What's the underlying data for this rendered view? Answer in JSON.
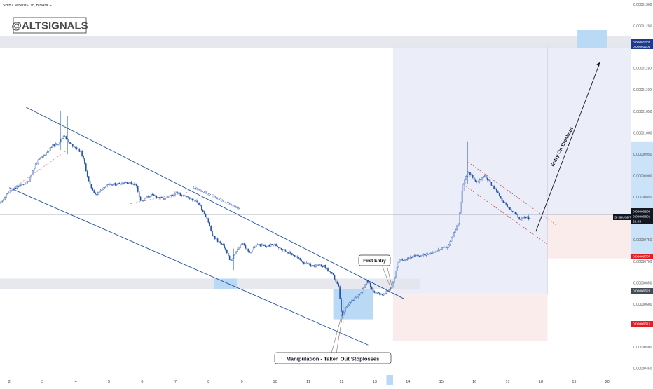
{
  "header": {
    "title": "SHIB / TetherUS, 1h, BINANCE"
  },
  "watermark": {
    "text": "@ALTSIGNALS"
  },
  "annotations": {
    "channel": "Descending Channel - Reversal",
    "first_entry": "First Entry",
    "breakout": "Entry On Breakout",
    "manipulation": "Manipulation - Taken Out Stoplosses"
  },
  "price_labels": {
    "target_top": "0.00001207",
    "target_bottom": "0.00001206",
    "symbol": "SHIBUSDT",
    "current_a": "0.00000809",
    "current_b": "0.00000801",
    "countdown": "28:03",
    "stop_upper": "0.00000707",
    "entry_lower": "0.00000623",
    "stop_lower": "0.00000515"
  },
  "colors": {
    "channel": "#1f4ea8",
    "candle": "#1f4ea8",
    "zone_blue": "#b9d9f5",
    "zone_grey": "#e2e4ea",
    "profit": "#e9ecf8",
    "loss": "#fbeaea",
    "stop": "#e31b23",
    "label_dark": "#131722"
  },
  "chart_data": {
    "type": "candlestick",
    "title": "SHIB / TetherUS, 1h, BINANCE",
    "xlabel": "",
    "ylabel": "",
    "grid": false,
    "x_ticks": [
      "2",
      "3",
      "4",
      "5",
      "6",
      "7",
      "8",
      "9",
      "10",
      "11",
      "12",
      "13",
      "14",
      "15",
      "16",
      "17",
      "18",
      "19",
      "20"
    ],
    "x_range": [
      1.72,
      20.7
    ],
    "y_ticks": [
      "0.00001300",
      "0.00001250",
      "0.00001200",
      "0.00001150",
      "0.00001100",
      "0.00001050",
      "0.00001000",
      "0.00000950",
      "0.00000900",
      "0.00000850",
      "0.00000800",
      "0.00000750",
      "0.00000700",
      "0.00000650",
      "0.00000600",
      "0.00000550",
      "0.00000500",
      "0.00000450"
    ],
    "y_range": [
      4.4e-06,
      1.31e-05
    ],
    "price_path": [
      [
        1.75,
        8.35e-06
      ],
      [
        2.0,
        8.6e-06
      ],
      [
        2.3,
        8.75e-06
      ],
      [
        2.6,
        8.85e-06
      ],
      [
        2.85,
        9.3e-06
      ],
      [
        3.1,
        9.5e-06
      ],
      [
        3.35,
        9.7e-06
      ],
      [
        3.5,
        9.75e-06
      ],
      [
        3.7,
        9.95e-06
      ],
      [
        3.85,
        9.75e-06
      ],
      [
        4.05,
        9.65e-06
      ],
      [
        4.2,
        9.55e-06
      ],
      [
        4.3,
        9.3e-06
      ],
      [
        4.45,
        8.8e-06
      ],
      [
        4.65,
        8.55e-06
      ],
      [
        4.9,
        8.75e-06
      ],
      [
        5.2,
        8.8e-06
      ],
      [
        5.55,
        8.85e-06
      ],
      [
        5.85,
        8.8e-06
      ],
      [
        6.0,
        8.4e-06
      ],
      [
        6.3,
        8.55e-06
      ],
      [
        6.7,
        8.45e-06
      ],
      [
        7.1,
        8.6e-06
      ],
      [
        7.4,
        8.5e-06
      ],
      [
        7.7,
        8.4e-06
      ],
      [
        8.0,
        8e-06
      ],
      [
        8.15,
        7.6e-06
      ],
      [
        8.5,
        7.35e-06
      ],
      [
        8.7,
        7e-06
      ],
      [
        8.85,
        7.2e-06
      ],
      [
        9.05,
        7.45e-06
      ],
      [
        9.25,
        7.2e-06
      ],
      [
        9.5,
        7.4e-06
      ],
      [
        9.75,
        7.35e-06
      ],
      [
        10.0,
        7.4e-06
      ],
      [
        10.35,
        7.25e-06
      ],
      [
        10.6,
        7.15e-06
      ],
      [
        10.85,
        7e-06
      ],
      [
        11.1,
        6.9e-06
      ],
      [
        11.5,
        6.9e-06
      ],
      [
        11.8,
        6.65e-06
      ],
      [
        11.95,
        6.4e-06
      ],
      [
        12.05,
        5.7e-06
      ],
      [
        12.15,
        5.9e-06
      ],
      [
        12.35,
        6.1e-06
      ],
      [
        12.6,
        6.25e-06
      ],
      [
        12.8,
        6.55e-06
      ],
      [
        13.0,
        6.3e-06
      ],
      [
        13.3,
        6.22e-06
      ],
      [
        13.55,
        6.4e-06
      ],
      [
        13.75,
        7e-06
      ],
      [
        14.1,
        7.1e-06
      ],
      [
        14.5,
        7.15e-06
      ],
      [
        14.9,
        7.25e-06
      ],
      [
        15.25,
        7.35e-06
      ],
      [
        15.55,
        7.9e-06
      ],
      [
        15.7,
        8.8e-06
      ],
      [
        15.85,
        9.1e-06
      ],
      [
        16.1,
        8.85e-06
      ],
      [
        16.35,
        9e-06
      ],
      [
        16.65,
        8.7e-06
      ],
      [
        16.9,
        8.4e-06
      ],
      [
        17.1,
        8.2e-06
      ],
      [
        17.3,
        8.1e-06
      ],
      [
        17.4,
        7.95e-06
      ],
      [
        17.55,
        8.05e-06
      ],
      [
        17.7,
        8e-06
      ]
    ],
    "channel": {
      "upper": [
        [
          2.5,
          1.06e-05
        ],
        [
          13.9,
          6.12e-06
        ]
      ],
      "lower": [
        [
          2.0,
          8.72e-06
        ],
        [
          12.8,
          5.05e-06
        ]
      ]
    },
    "flag": {
      "upper": [
        [
          15.75,
          9.35e-06
        ],
        [
          18.5,
          7.83e-06
        ]
      ],
      "lower": [
        [
          15.75,
          8.75e-06
        ],
        [
          18.2,
          7.4e-06
        ]
      ]
    },
    "long_positions": [
      {
        "entry": 6.23e-06,
        "target": 1.207e-05,
        "stop": 5.15e-06,
        "from": 13.55,
        "to": 18.2
      },
      {
        "entry": 8.09e-06,
        "target": 1.207e-05,
        "stop": 7.07e-06,
        "from": 18.2,
        "to": 20.7
      }
    ],
    "horizontal_levels": [
      1.207e-05,
      8.09e-06,
      6.5e-06
    ]
  }
}
